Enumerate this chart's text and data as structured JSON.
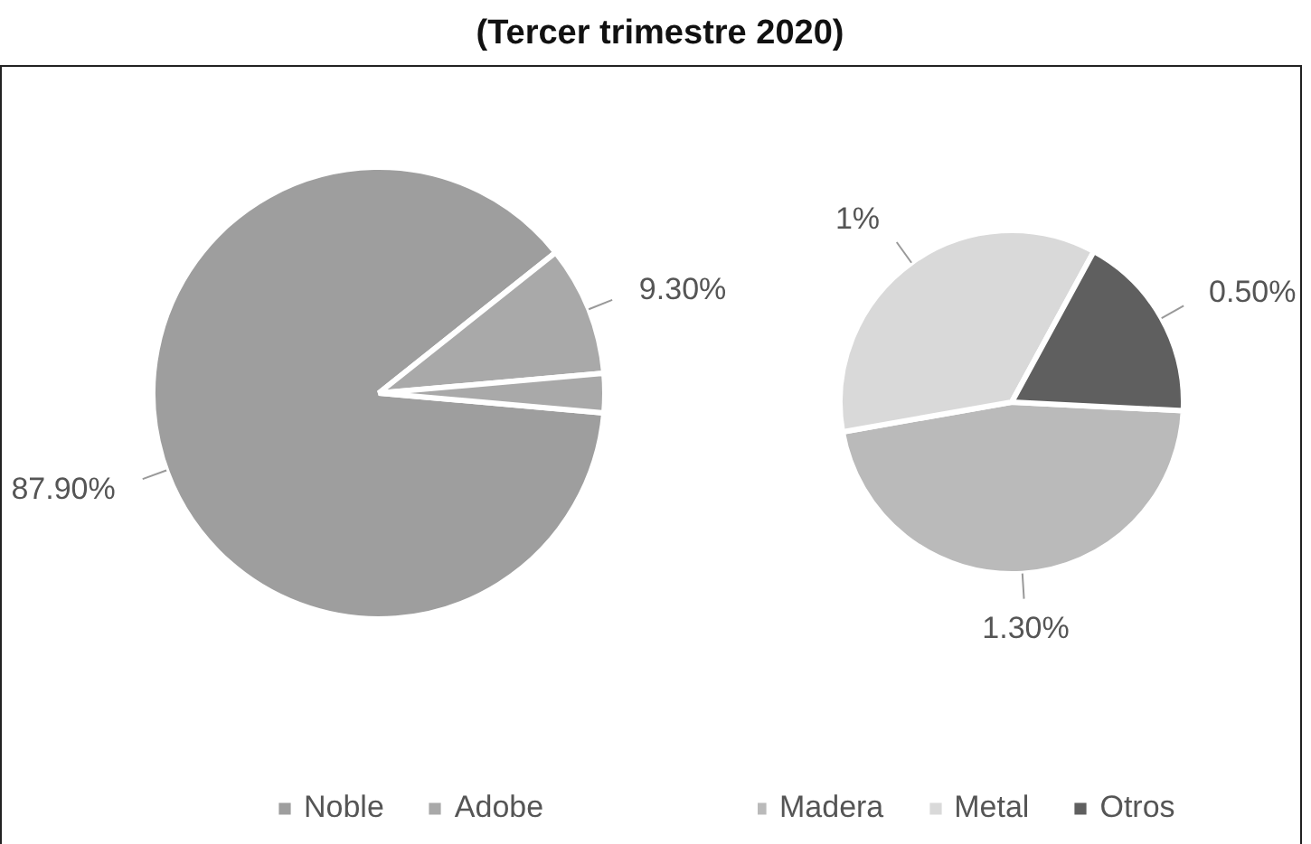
{
  "chart_data": [
    {
      "type": "pie",
      "title": "(Tercer trimestre 2020)",
      "categories": [
        "Noble",
        "Adobe",
        null
      ],
      "values": [
        87.9,
        9.3,
        2.8
      ],
      "value_labels": [
        "87.90%",
        "9.30%",
        null
      ],
      "colors": [
        "#9e9e9e",
        "#a9a9a9",
        "#a9a9a9"
      ],
      "legend": "bottom"
    },
    {
      "type": "pie",
      "categories": [
        "Madera",
        "Metal",
        "Otros"
      ],
      "values": [
        1.3,
        1,
        0.5
      ],
      "value_labels": [
        "1.30%",
        "1%",
        "0.50%"
      ],
      "colors": [
        "#bababa",
        "#d9d9d9",
        "#5f5f5f"
      ],
      "legend": "bottom"
    }
  ]
}
